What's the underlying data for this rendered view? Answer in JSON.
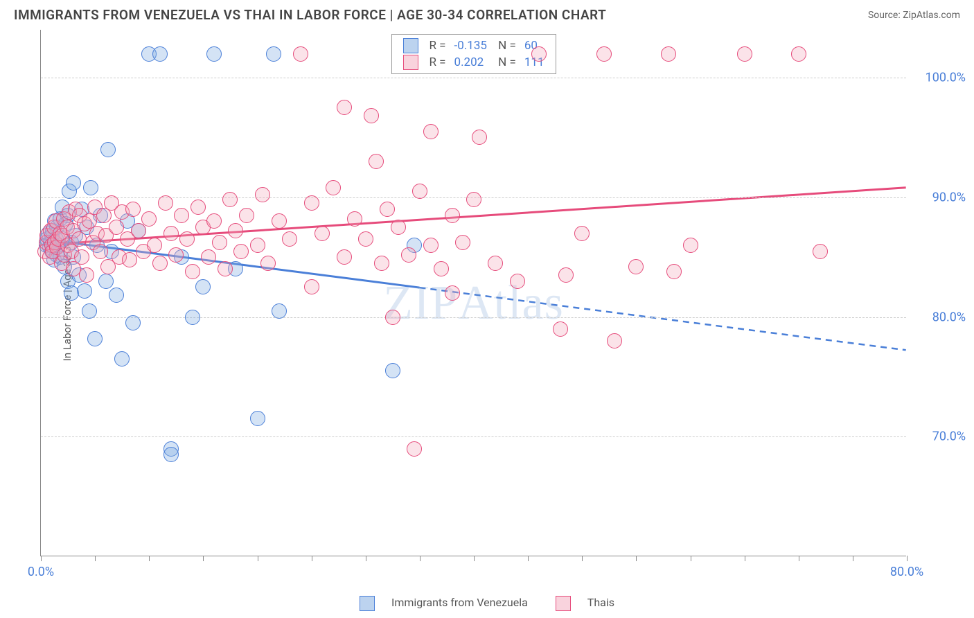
{
  "header": {
    "title": "IMMIGRANTS FROM VENEZUELA VS THAI IN LABOR FORCE | AGE 30-34 CORRELATION CHART",
    "source_label": "Source:",
    "source_name": "ZipAtlas.com"
  },
  "watermark": "ZIPAtlas",
  "chart": {
    "type": "scatter",
    "ylabel": "In Labor Force | Age 30-34",
    "background_color": "#ffffff",
    "grid_color": "#cccccc",
    "axis_color": "#888888",
    "tick_label_color": "#4a7fd8",
    "xlim": [
      0,
      80
    ],
    "ylim": [
      60,
      104
    ],
    "y_ticks": [
      {
        "v": 70,
        "label": "70.0%"
      },
      {
        "v": 80,
        "label": "80.0%"
      },
      {
        "v": 90,
        "label": "90.0%"
      },
      {
        "v": 100,
        "label": "100.0%"
      }
    ],
    "x_ticks": [
      0,
      5,
      10,
      15,
      20,
      25,
      30,
      35,
      40,
      45,
      50,
      55,
      60,
      65,
      70,
      75,
      80
    ],
    "x_labels": [
      {
        "v": 0,
        "label": "0.0%"
      },
      {
        "v": 80,
        "label": "80.0%"
      }
    ],
    "marker": {
      "radius": 11,
      "stroke_width": 1.3,
      "fill_opacity": 0.32
    },
    "series": [
      {
        "key": "venezuela",
        "label": "Immigrants from Venezuela",
        "fill": "#7aa8e0",
        "stroke": "#4a7fd8",
        "R": "-0.135",
        "N": "60",
        "trend": {
          "y_at_x0": 86.5,
          "y_at_x80": 77.2,
          "solid_until_x": 35,
          "stroke_width": 3
        },
        "points": [
          [
            0.5,
            86.0
          ],
          [
            0.6,
            86.5
          ],
          [
            0.7,
            87.0
          ],
          [
            0.8,
            85.8
          ],
          [
            0.9,
            86.2
          ],
          [
            1.0,
            85.5
          ],
          [
            1.0,
            86.8
          ],
          [
            1.1,
            87.2
          ],
          [
            1.2,
            86.0
          ],
          [
            1.2,
            84.8
          ],
          [
            1.3,
            88.0
          ],
          [
            1.4,
            86.5
          ],
          [
            1.5,
            85.2
          ],
          [
            1.5,
            87.5
          ],
          [
            1.6,
            86.0
          ],
          [
            1.8,
            85.0
          ],
          [
            1.8,
            88.2
          ],
          [
            2.0,
            86.5
          ],
          [
            2.0,
            89.2
          ],
          [
            2.2,
            84.2
          ],
          [
            2.3,
            87.8
          ],
          [
            2.5,
            83.0
          ],
          [
            2.5,
            88.5
          ],
          [
            2.6,
            90.5
          ],
          [
            2.8,
            82.0
          ],
          [
            2.8,
            86.2
          ],
          [
            3.0,
            85.0
          ],
          [
            3.0,
            91.2
          ],
          [
            3.2,
            86.8
          ],
          [
            3.5,
            83.5
          ],
          [
            3.8,
            89.0
          ],
          [
            4.0,
            82.2
          ],
          [
            4.2,
            87.5
          ],
          [
            4.5,
            80.5
          ],
          [
            4.6,
            90.8
          ],
          [
            5.0,
            78.2
          ],
          [
            5.2,
            86.0
          ],
          [
            5.5,
            88.5
          ],
          [
            6.0,
            83.0
          ],
          [
            6.2,
            94.0
          ],
          [
            6.5,
            85.5
          ],
          [
            7.0,
            81.8
          ],
          [
            7.5,
            76.5
          ],
          [
            8.0,
            88.0
          ],
          [
            8.5,
            79.5
          ],
          [
            9.0,
            87.2
          ],
          [
            10.0,
            102.0
          ],
          [
            11.0,
            102.0
          ],
          [
            12.0,
            69.0
          ],
          [
            12.0,
            68.5
          ],
          [
            13.0,
            85.0
          ],
          [
            14.0,
            80.0
          ],
          [
            15.0,
            82.5
          ],
          [
            16.0,
            102.0
          ],
          [
            18.0,
            84.0
          ],
          [
            20.0,
            71.5
          ],
          [
            21.5,
            102.0
          ],
          [
            22.0,
            80.5
          ],
          [
            32.5,
            75.5
          ],
          [
            34.5,
            86.0
          ]
        ]
      },
      {
        "key": "thais",
        "label": "Thais",
        "fill": "#f4a8bc",
        "stroke": "#e64b7b",
        "R": "0.202",
        "N": "111",
        "trend": {
          "y_at_x0": 86.0,
          "y_at_x80": 90.8,
          "solid_until_x": 80,
          "stroke_width": 3
        },
        "points": [
          [
            0.4,
            85.5
          ],
          [
            0.5,
            86.2
          ],
          [
            0.6,
            86.8
          ],
          [
            0.8,
            85.0
          ],
          [
            0.9,
            87.2
          ],
          [
            1.0,
            86.0
          ],
          [
            1.1,
            85.5
          ],
          [
            1.2,
            87.5
          ],
          [
            1.3,
            86.2
          ],
          [
            1.4,
            88.0
          ],
          [
            1.5,
            85.8
          ],
          [
            1.6,
            86.5
          ],
          [
            1.8,
            87.0
          ],
          [
            1.9,
            84.5
          ],
          [
            2.0,
            86.8
          ],
          [
            2.1,
            88.2
          ],
          [
            2.2,
            85.2
          ],
          [
            2.4,
            87.5
          ],
          [
            2.5,
            86.0
          ],
          [
            2.6,
            88.8
          ],
          [
            2.8,
            85.5
          ],
          [
            3.0,
            87.2
          ],
          [
            3.0,
            84.0
          ],
          [
            3.2,
            89.0
          ],
          [
            3.5,
            86.5
          ],
          [
            3.6,
            88.5
          ],
          [
            3.8,
            85.0
          ],
          [
            4.0,
            87.8
          ],
          [
            4.2,
            83.5
          ],
          [
            4.5,
            88.0
          ],
          [
            4.8,
            86.2
          ],
          [
            5.0,
            89.2
          ],
          [
            5.2,
            87.0
          ],
          [
            5.5,
            85.5
          ],
          [
            5.8,
            88.5
          ],
          [
            6.0,
            86.8
          ],
          [
            6.2,
            84.2
          ],
          [
            6.5,
            89.5
          ],
          [
            7.0,
            87.5
          ],
          [
            7.2,
            85.0
          ],
          [
            7.5,
            88.8
          ],
          [
            8.0,
            86.5
          ],
          [
            8.2,
            84.8
          ],
          [
            8.5,
            89.0
          ],
          [
            9.0,
            87.2
          ],
          [
            9.5,
            85.5
          ],
          [
            10.0,
            88.2
          ],
          [
            10.5,
            86.0
          ],
          [
            11.0,
            84.5
          ],
          [
            11.5,
            89.5
          ],
          [
            12.0,
            87.0
          ],
          [
            12.5,
            85.2
          ],
          [
            13.0,
            88.5
          ],
          [
            13.5,
            86.5
          ],
          [
            14.0,
            83.8
          ],
          [
            14.5,
            89.2
          ],
          [
            15.0,
            87.5
          ],
          [
            15.5,
            85.0
          ],
          [
            16.0,
            88.0
          ],
          [
            16.5,
            86.2
          ],
          [
            17.0,
            84.0
          ],
          [
            17.5,
            89.8
          ],
          [
            18.0,
            87.2
          ],
          [
            18.5,
            85.5
          ],
          [
            19.0,
            88.5
          ],
          [
            20.0,
            86.0
          ],
          [
            20.5,
            90.2
          ],
          [
            21.0,
            84.5
          ],
          [
            22.0,
            88.0
          ],
          [
            23.0,
            86.5
          ],
          [
            24.0,
            102.0
          ],
          [
            25.0,
            89.5
          ],
          [
            25.0,
            82.5
          ],
          [
            26.0,
            87.0
          ],
          [
            27.0,
            90.8
          ],
          [
            28.0,
            85.0
          ],
          [
            28.0,
            97.5
          ],
          [
            29.0,
            88.2
          ],
          [
            30.0,
            86.5
          ],
          [
            30.5,
            96.8
          ],
          [
            31.0,
            93.0
          ],
          [
            31.5,
            84.5
          ],
          [
            32.0,
            89.0
          ],
          [
            32.5,
            80.0
          ],
          [
            33.0,
            87.5
          ],
          [
            34.0,
            85.2
          ],
          [
            34.5,
            69.0
          ],
          [
            35.0,
            90.5
          ],
          [
            36.0,
            86.0
          ],
          [
            36.0,
            95.5
          ],
          [
            37.0,
            84.0
          ],
          [
            38.0,
            88.5
          ],
          [
            38.0,
            82.0
          ],
          [
            39.0,
            86.2
          ],
          [
            40.0,
            89.8
          ],
          [
            40.5,
            95.0
          ],
          [
            42.0,
            84.5
          ],
          [
            44.0,
            83.0
          ],
          [
            46.0,
            102.0
          ],
          [
            48.0,
            79.0
          ],
          [
            48.5,
            83.5
          ],
          [
            50.0,
            87.0
          ],
          [
            52.0,
            102.0
          ],
          [
            53.0,
            78.0
          ],
          [
            55.0,
            84.2
          ],
          [
            58.0,
            102.0
          ],
          [
            58.5,
            83.8
          ],
          [
            60.0,
            86.0
          ],
          [
            65.0,
            102.0
          ],
          [
            70.0,
            102.0
          ],
          [
            72.0,
            85.5
          ]
        ]
      }
    ]
  },
  "legend_bottom": [
    {
      "series": "venezuela"
    },
    {
      "series": "thais"
    }
  ]
}
